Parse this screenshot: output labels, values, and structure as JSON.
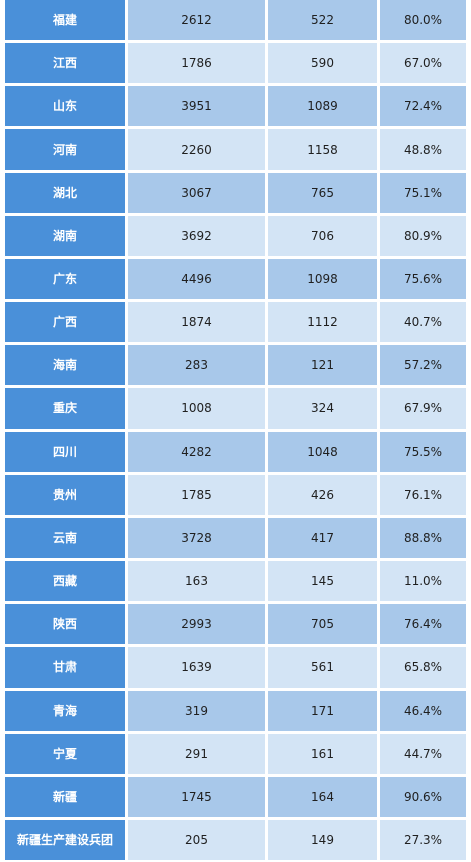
{
  "rows": [
    {
      "region": "福建",
      "v1": "2612",
      "v2": "522",
      "rate": "80.0%"
    },
    {
      "region": "江西",
      "v1": "1786",
      "v2": "590",
      "rate": "67.0%"
    },
    {
      "region": "山东",
      "v1": "3951",
      "v2": "1089",
      "rate": "72.4%"
    },
    {
      "region": "河南",
      "v1": "2260",
      "v2": "1158",
      "rate": "48.8%"
    },
    {
      "region": "湖北",
      "v1": "3067",
      "v2": "765",
      "rate": "75.1%"
    },
    {
      "region": "湖南",
      "v1": "3692",
      "v2": "706",
      "rate": "80.9%"
    },
    {
      "region": "广东",
      "v1": "4496",
      "v2": "1098",
      "rate": "75.6%"
    },
    {
      "region": "广西",
      "v1": "1874",
      "v2": "1112",
      "rate": "40.7%"
    },
    {
      "region": "海南",
      "v1": "283",
      "v2": "121",
      "rate": "57.2%"
    },
    {
      "region": "重庆",
      "v1": "1008",
      "v2": "324",
      "rate": "67.9%"
    },
    {
      "region": "四川",
      "v1": "4282",
      "v2": "1048",
      "rate": "75.5%"
    },
    {
      "region": "贵州",
      "v1": "1785",
      "v2": "426",
      "rate": "76.1%"
    },
    {
      "region": "云南",
      "v1": "3728",
      "v2": "417",
      "rate": "88.8%"
    },
    {
      "region": "西藏",
      "v1": "163",
      "v2": "145",
      "rate": "11.0%"
    },
    {
      "region": "陕西",
      "v1": "2993",
      "v2": "705",
      "rate": "76.4%"
    },
    {
      "region": "甘肃",
      "v1": "1639",
      "v2": "561",
      "rate": "65.8%"
    },
    {
      "region": "青海",
      "v1": "319",
      "v2": "171",
      "rate": "46.4%"
    },
    {
      "region": "宁夏",
      "v1": "291",
      "v2": "161",
      "rate": "44.7%"
    },
    {
      "region": "新疆",
      "v1": "1745",
      "v2": "164",
      "rate": "90.6%"
    },
    {
      "region": "新疆生产建设兵团",
      "v1": "205",
      "v2": "149",
      "rate": "27.3%"
    }
  ],
  "colors": {
    "header_blue": "#4a90d9",
    "row_dark": "#a8c8ea",
    "row_light": "#d3e4f5"
  }
}
